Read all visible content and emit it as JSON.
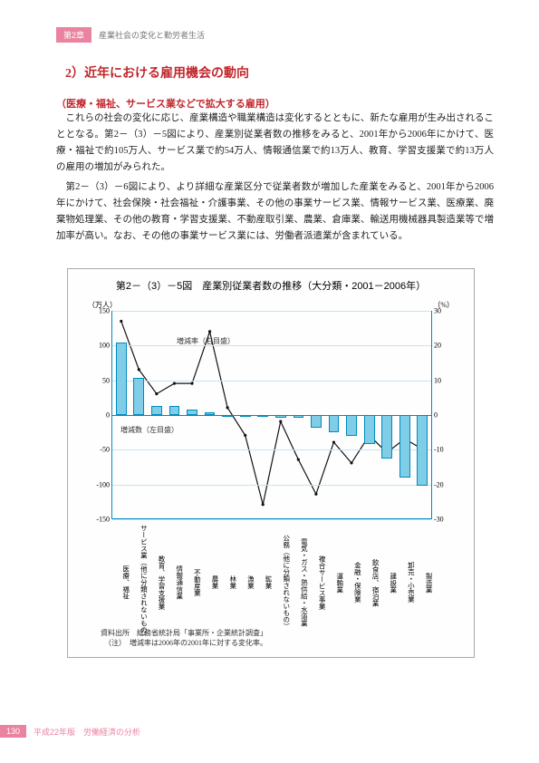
{
  "header": {
    "chapter_tag": "第2章",
    "chapter_title": "産業社会の変化と勤労者生活"
  },
  "section": {
    "number_title": "2）近年における雇用機会の動向",
    "subtitle": "（医療・福祉、サービス業などで拡大する雇用）"
  },
  "paragraphs": {
    "p1": "これらの社会の変化に応じ、産業構造や職業構造は変化するとともに、新たな雇用が生み出されることとなる。第2－（3）－5図により、産業別従業者数の推移をみると、2001年から2006年にかけて、医療・福祉で約105万人、サービス業で約54万人、情報通信業で約13万人、教育、学習支援業で約13万人の雇用の増加がみられた。",
    "p2": "第2－（3）－6図により、より詳細な産業区分で従業者数が増加した産業をみると、2001年から2006年にかけて、社会保険・社会福祉・介護事業、その他の事業サービス業、情報サービス業、医療業、廃棄物処理業、その他の教育・学習支援業、不動産取引業、農業、倉庫業、輸送用機械器具製造業等で増加率が高い。なお、その他の事業サービス業には、労働者派遣業が含まれている。"
  },
  "figure": {
    "title": "第2－（3）－5図　産業別従業者数の推移（大分類・2001－2006年）",
    "left_axis_unit": "（万人）",
    "right_axis_unit": "（%）",
    "left_axis": {
      "min": -150,
      "max": 150,
      "ticks": [
        150,
        100,
        50,
        0,
        -50,
        -100,
        -150
      ]
    },
    "right_axis": {
      "min": -30,
      "max": 30,
      "ticks": [
        30,
        20,
        10,
        0,
        -10,
        -20,
        -30
      ]
    },
    "categories": [
      "医療、福祉",
      "サービス業（他に分類されないもの）",
      "教育、学習支援業",
      "情報通信業",
      "不動産業",
      "農業",
      "林業",
      "漁業",
      "鉱業",
      "公務（他に分類されないもの）",
      "電気・ガス・熱供給・水道業",
      "複合サービス事業",
      "運輸業",
      "金融・保険業",
      "飲食店、宿泊業",
      "建設業",
      "卸売・小売業",
      "製造業"
    ],
    "bars_values": [
      105,
      54,
      13,
      13,
      8,
      4,
      0,
      -2,
      -3,
      -4,
      -4,
      -18,
      -25,
      -30,
      -42,
      -63,
      -90,
      -102
    ],
    "line_values_pct": [
      27,
      13,
      6,
      9,
      9,
      24,
      2,
      -6,
      -26,
      -2,
      -13,
      -23,
      -8,
      -14,
      -6,
      -11,
      -7,
      -10
    ],
    "annot_rate": "増減率（右目盛）",
    "annot_num": "増減数（左目盛）",
    "source_label": "資料出所",
    "source_text": "総務省統計局「事業所・企業統計調査」",
    "note_label": "（注）",
    "note_text": "増減率は2006年の2001年に対する変化率。",
    "colors": {
      "bar_fill": "#7fcde6",
      "bar_stroke": "#008bbf",
      "grid": "#c4e4ef",
      "axis": "#008bbf",
      "line": "#111111"
    }
  },
  "footer": {
    "page": "130",
    "text": "平成22年版　労働経済の分析"
  }
}
